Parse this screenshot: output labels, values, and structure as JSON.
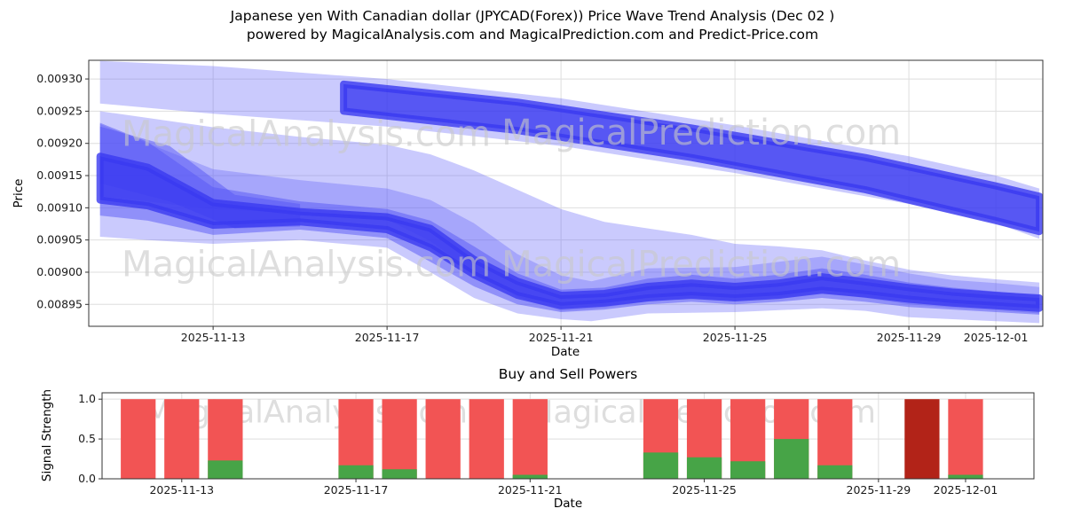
{
  "title": {
    "line1": "Japanese yen With Canadian dollar (JPYCAD(Forex)) Price Wave Trend Analysis (Dec 02 )",
    "line2": "powered by MagicalAnalysis.com and MagicalPrediction.com and Predict-Price.com"
  },
  "watermark": {
    "left": "MagicalAnalysis.com",
    "right": "MagicalPrediction.com"
  },
  "chart_data": [
    {
      "type": "area",
      "name": "price-wave-trend",
      "xlabel": "Date",
      "ylabel": "Price",
      "xlim": [
        10.14,
        32.08
      ],
      "ylim": [
        0.008916,
        0.009329
      ],
      "grid": true,
      "x_ticks": [
        {
          "day": 13,
          "label": "2025-11-13"
        },
        {
          "day": 17,
          "label": "2025-11-17"
        },
        {
          "day": 21,
          "label": "2025-11-21"
        },
        {
          "day": 25,
          "label": "2025-11-25"
        },
        {
          "day": 29,
          "label": "2025-11-29"
        },
        {
          "day": 31,
          "label": "2025-12-01"
        }
      ],
      "y_ticks": [
        {
          "v": 0.00895,
          "label": "0.00895"
        },
        {
          "v": 0.009,
          "label": "0.00900"
        },
        {
          "v": 0.00905,
          "label": "0.00905"
        },
        {
          "v": 0.0091,
          "label": "0.00910"
        },
        {
          "v": 0.00915,
          "label": "0.00915"
        },
        {
          "v": 0.0092,
          "label": "0.00920"
        },
        {
          "v": 0.00925,
          "label": "0.00925"
        },
        {
          "v": 0.0093,
          "label": "0.00930"
        }
      ],
      "colors": {
        "light": "rgba(95,95,248,0.33)",
        "medium": "rgba(85,85,246,0.50)",
        "dark": "rgba(58,58,240,0.80)"
      },
      "bands": [
        {
          "name": "forecast-ribbon-outer",
          "style": "light",
          "points": [
            [
              10.4,
              0.009262,
              0.009328
            ],
            [
              13,
              0.009246,
              0.00932
            ],
            [
              17,
              0.009226,
              0.0093
            ],
            [
              21,
              0.009196,
              0.00927
            ],
            [
              25,
              0.009154,
              0.009228
            ],
            [
              29,
              0.009106,
              0.00918
            ],
            [
              31,
              0.009076,
              0.00915
            ],
            [
              32,
              0.009052,
              0.00913
            ]
          ]
        },
        {
          "name": "mid-envelope",
          "style": "light",
          "points": [
            [
              10.4,
              0.009118,
              0.00925
            ],
            [
              13,
              0.009098,
              0.009225
            ],
            [
              15,
              0.009092,
              0.00921
            ],
            [
              17,
              0.009082,
              0.009198
            ],
            [
              18,
              0.009048,
              0.009183
            ],
            [
              19,
              0.009,
              0.009158
            ],
            [
              20,
              0.008962,
              0.009128
            ],
            [
              21,
              0.00894,
              0.009098
            ],
            [
              22,
              0.008945,
              0.009078
            ],
            [
              23,
              0.008955,
              0.009068
            ],
            [
              24,
              0.00896,
              0.009058
            ],
            [
              25,
              0.008956,
              0.009044
            ],
            [
              26,
              0.00896,
              0.00904
            ],
            [
              27,
              0.008968,
              0.009034
            ],
            [
              28,
              0.00896,
              0.009018
            ],
            [
              29,
              0.00895,
              0.009004
            ],
            [
              30,
              0.008945,
              0.008995
            ],
            [
              31,
              0.008941,
              0.008989
            ],
            [
              32,
              0.008936,
              0.008984
            ]
          ]
        },
        {
          "name": "lower-envelope",
          "style": "light",
          "points": [
            [
              10.4,
              0.009055,
              0.00923
            ],
            [
              11.5,
              0.00905,
              0.0092
            ],
            [
              13,
              0.009044,
              0.00916
            ],
            [
              15,
              0.00905,
              0.009143
            ],
            [
              17,
              0.009038,
              0.00913
            ],
            [
              18,
              0.009,
              0.009112
            ],
            [
              19,
              0.00896,
              0.009076
            ],
            [
              20,
              0.008936,
              0.009028
            ],
            [
              21,
              0.008927,
              0.008995
            ],
            [
              21.7,
              0.008924,
              0.008986
            ],
            [
              23,
              0.008936,
              0.009006
            ],
            [
              25,
              0.008938,
              0.009008
            ],
            [
              27,
              0.008944,
              0.009024
            ],
            [
              28,
              0.00894,
              0.009012
            ],
            [
              29,
              0.00893,
              0.008998
            ],
            [
              30,
              0.008927,
              0.008988
            ],
            [
              31,
              0.008924,
              0.008983
            ],
            [
              32,
              0.008921,
              0.008977
            ]
          ]
        },
        {
          "name": "left-wedge",
          "style": "medium",
          "points": [
            [
              10.4,
              0.009138,
              0.009226
            ],
            [
              12,
              0.00911,
              0.009196
            ],
            [
              13.5,
              0.009068,
              0.00912
            ],
            [
              15,
              0.009071,
              0.009106
            ]
          ]
        },
        {
          "name": "trend-band",
          "style": "medium",
          "points": [
            [
              10.4,
              0.009088,
              0.009232
            ],
            [
              11.5,
              0.00908,
              0.009202
            ],
            [
              13,
              0.009058,
              0.009132
            ],
            [
              15,
              0.009066,
              0.00911
            ],
            [
              17,
              0.009053,
              0.009098
            ],
            [
              18,
              0.009016,
              0.00908
            ],
            [
              19,
              0.008978,
              0.00904
            ],
            [
              20,
              0.00895,
              0.008998
            ],
            [
              21,
              0.008938,
              0.008973
            ],
            [
              22,
              0.008942,
              0.008976
            ],
            [
              23,
              0.00895,
              0.00899
            ],
            [
              24,
              0.008954,
              0.008996
            ],
            [
              25,
              0.00895,
              0.00899
            ],
            [
              26,
              0.008954,
              0.008996
            ],
            [
              27,
              0.00896,
              0.009006
            ],
            [
              28,
              0.008954,
              0.008996
            ],
            [
              29,
              0.008946,
              0.008984
            ],
            [
              30,
              0.008942,
              0.008976
            ],
            [
              31,
              0.008938,
              0.00897
            ],
            [
              32,
              0.008934,
              0.008964
            ]
          ]
        },
        {
          "name": "forecast-ribbon-core",
          "style": "dark",
          "points": [
            [
              16,
              0.00925,
              0.009292
            ],
            [
              20,
              0.00922,
              0.009264
            ],
            [
              24,
              0.009178,
              0.009224
            ],
            [
              28,
              0.009128,
              0.009178
            ],
            [
              31,
              0.00908,
              0.009134
            ],
            [
              32,
              0.009063,
              0.009118
            ]
          ]
        },
        {
          "name": "trend-core",
          "style": "dark",
          "points": [
            [
              10.4,
              0.009112,
              0.00918
            ],
            [
              11.5,
              0.009103,
              0.009163
            ],
            [
              13,
              0.009073,
              0.009108
            ],
            [
              15,
              0.009078,
              0.009094
            ],
            [
              17,
              0.009066,
              0.009086
            ],
            [
              18,
              0.009038,
              0.009068
            ],
            [
              19,
              0.008996,
              0.00902
            ],
            [
              20,
              0.008964,
              0.008986
            ],
            [
              21,
              0.008948,
              0.008964
            ],
            [
              22,
              0.008952,
              0.008967
            ],
            [
              23,
              0.00896,
              0.008978
            ],
            [
              24,
              0.008964,
              0.008983
            ],
            [
              25,
              0.00896,
              0.008978
            ],
            [
              26,
              0.008964,
              0.008983
            ],
            [
              27,
              0.008972,
              0.008993
            ],
            [
              28,
              0.008966,
              0.008985
            ],
            [
              29,
              0.008958,
              0.008976
            ],
            [
              30,
              0.008952,
              0.008969
            ],
            [
              31,
              0.008948,
              0.008964
            ],
            [
              32,
              0.008944,
              0.00896
            ]
          ]
        }
      ]
    },
    {
      "type": "bar",
      "name": "buy-sell-powers",
      "title": "Buy and Sell Powers",
      "xlabel": "Date",
      "ylabel": "Signal Strength",
      "xlim": [
        11.17,
        32.57
      ],
      "ylim": [
        0,
        1.08
      ],
      "grid": true,
      "bar_width": 0.8,
      "x_ticks": [
        {
          "day": 13,
          "label": "2025-11-13"
        },
        {
          "day": 17,
          "label": "2025-11-17"
        },
        {
          "day": 21,
          "label": "2025-11-21"
        },
        {
          "day": 25,
          "label": "2025-11-25"
        },
        {
          "day": 29,
          "label": "2025-11-29"
        },
        {
          "day": 31,
          "label": "2025-12-01"
        }
      ],
      "y_ticks": [
        {
          "v": 0,
          "label": "0.0"
        },
        {
          "v": 0.5,
          "label": "0.5"
        },
        {
          "v": 1,
          "label": "1.0"
        }
      ],
      "colors": {
        "sell": "#f25454",
        "buy": "#47a447",
        "strong_sell": "#b22318"
      },
      "bars": [
        {
          "date": "2025-11-12",
          "day": 12,
          "sell": 1.0,
          "buy": 0.0
        },
        {
          "date": "2025-11-13",
          "day": 13,
          "sell": 1.0,
          "buy": 0.0
        },
        {
          "date": "2025-11-14",
          "day": 14,
          "sell": 1.0,
          "buy": 0.23
        },
        {
          "date": "2025-11-17",
          "day": 17,
          "sell": 1.0,
          "buy": 0.17
        },
        {
          "date": "2025-11-18",
          "day": 18,
          "sell": 1.0,
          "buy": 0.12
        },
        {
          "date": "2025-11-19",
          "day": 19,
          "sell": 1.0,
          "buy": 0.0
        },
        {
          "date": "2025-11-20",
          "day": 20,
          "sell": 1.0,
          "buy": 0.0
        },
        {
          "date": "2025-11-21",
          "day": 21,
          "sell": 1.0,
          "buy": 0.05
        },
        {
          "date": "2025-11-24",
          "day": 24,
          "sell": 1.0,
          "buy": 0.33
        },
        {
          "date": "2025-11-25",
          "day": 25,
          "sell": 1.0,
          "buy": 0.27
        },
        {
          "date": "2025-11-26",
          "day": 26,
          "sell": 1.0,
          "buy": 0.22
        },
        {
          "date": "2025-11-27",
          "day": 27,
          "sell": 1.0,
          "buy": 0.5
        },
        {
          "date": "2025-11-28",
          "day": 28,
          "sell": 1.0,
          "buy": 0.17
        },
        {
          "date": "2025-11-30",
          "day": 30,
          "sell": 1.0,
          "buy": 0.0,
          "strong_sell": true
        },
        {
          "date": "2025-12-01",
          "day": 31,
          "sell": 1.0,
          "buy": 0.05
        }
      ]
    }
  ]
}
